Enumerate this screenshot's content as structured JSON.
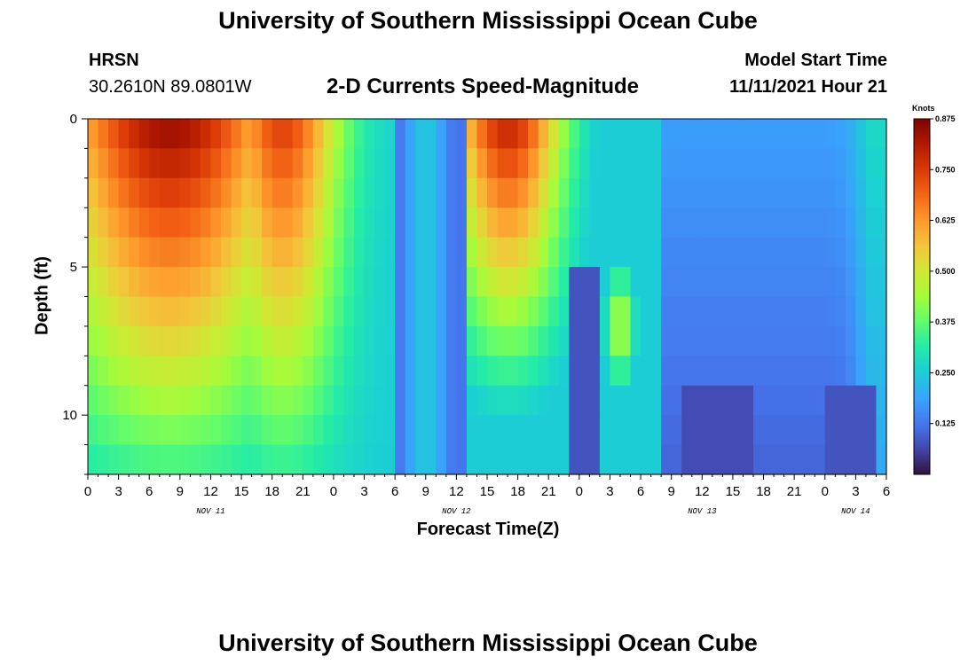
{
  "header": {
    "title": "University of Southern Mississippi Ocean Cube",
    "station": "HRSN",
    "coords": "30.2610N  89.0801W",
    "plot_title": "2-D Currents Speed-Magnitude",
    "model_label": "Model Start Time",
    "model_time": "11/11/2021 Hour 21"
  },
  "footer": {
    "title": "University of Southern Mississippi Ocean Cube"
  },
  "chart_data": {
    "type": "heatmap",
    "title": "2-D Currents Speed-Magnitude",
    "xlabel": "Forecast Time(Z)",
    "ylabel": "Depth (ft)",
    "x_hours": [
      0,
      78
    ],
    "xticks": [
      {
        "h": 0,
        "label": "0"
      },
      {
        "h": 3,
        "label": "3"
      },
      {
        "h": 6,
        "label": "6"
      },
      {
        "h": 9,
        "label": "9"
      },
      {
        "h": 12,
        "label": "12"
      },
      {
        "h": 15,
        "label": "15"
      },
      {
        "h": 18,
        "label": "18"
      },
      {
        "h": 21,
        "label": "21"
      },
      {
        "h": 24,
        "label": "0"
      },
      {
        "h": 27,
        "label": "3"
      },
      {
        "h": 30,
        "label": "6"
      },
      {
        "h": 33,
        "label": "9"
      },
      {
        "h": 36,
        "label": "12"
      },
      {
        "h": 39,
        "label": "15"
      },
      {
        "h": 42,
        "label": "18"
      },
      {
        "h": 45,
        "label": "21"
      },
      {
        "h": 48,
        "label": "0"
      },
      {
        "h": 51,
        "label": "3"
      },
      {
        "h": 54,
        "label": "6"
      },
      {
        "h": 57,
        "label": "9"
      },
      {
        "h": 60,
        "label": "12"
      },
      {
        "h": 63,
        "label": "15"
      },
      {
        "h": 66,
        "label": "18"
      },
      {
        "h": 69,
        "label": "21"
      },
      {
        "h": 72,
        "label": "0"
      },
      {
        "h": 75,
        "label": "3"
      },
      {
        "h": 78,
        "label": "6"
      }
    ],
    "date_labels": [
      {
        "h": 12,
        "label": "NOV 11"
      },
      {
        "h": 36,
        "label": "NOV 12"
      },
      {
        "h": 60,
        "label": "NOV 13"
      },
      {
        "h": 75,
        "label": "NOV 14"
      }
    ],
    "ylim": [
      12,
      0
    ],
    "yticks": [
      0,
      5,
      10
    ],
    "colorbar": {
      "label": "Knots",
      "range": [
        0,
        0.875
      ],
      "ticks": [
        "0.875",
        "0.750",
        "0.625",
        "0.500",
        "0.375",
        "0.250",
        "0.125"
      ]
    },
    "depth_rows": 12,
    "time_columns": 78,
    "features": [
      {
        "desc": "strong flood/ebb core",
        "hours": [
          0,
          24
        ],
        "max_speed_knots": 0.85
      },
      {
        "desc": "second strong core",
        "hours": [
          37,
          46
        ],
        "max_speed_knots": 0.8
      },
      {
        "desc": "subsurface jet",
        "hours": [
          51,
          54
        ],
        "depth_ft": [
          6,
          8
        ],
        "max_speed_knots": 0.45
      },
      {
        "desc": "weak flow",
        "hours": [
          56,
          78
        ],
        "speed_knots": 0.1
      }
    ]
  }
}
